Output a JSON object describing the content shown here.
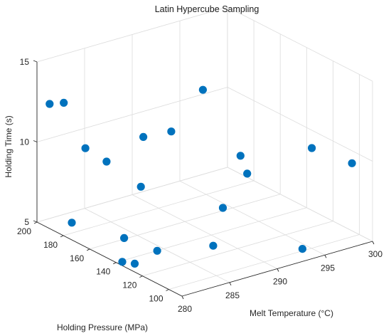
{
  "chart_data": {
    "type": "scatter",
    "projection": "3d",
    "title": "Latin Hypercube Sampling",
    "xlabel": "Melt Temperature (°C)",
    "ylabel": "Holding Pressure (MPa)",
    "zlabel": "Holding Time (s)",
    "xlim": [
      280,
      300
    ],
    "ylim": [
      90,
      200
    ],
    "zlim": [
      5,
      15
    ],
    "xticks": [
      280,
      285,
      290,
      295,
      300
    ],
    "yticks": [
      100,
      120,
      140,
      160,
      180,
      200
    ],
    "zticks": [
      5,
      10,
      15
    ],
    "grid": true,
    "marker_color": "#0072BD",
    "points": [
      {
        "x": 280.8,
        "y": 196.2,
        "z": 12.4
      },
      {
        "x": 281.9,
        "y": 193.4,
        "z": 12.4
      },
      {
        "x": 281.8,
        "y": 176.3,
        "z": 10.3
      },
      {
        "x": 282.1,
        "y": 162.4,
        "z": 10.0
      },
      {
        "x": 285.7,
        "y": 160.5,
        "z": 11.0
      },
      {
        "x": 286.4,
        "y": 144.4,
        "z": 11.9
      },
      {
        "x": 294.0,
        "y": 175.3,
        "z": 11.9
      },
      {
        "x": 292.7,
        "y": 137.4,
        "z": 9.6
      },
      {
        "x": 290.8,
        "y": 118.6,
        "z": 9.6
      },
      {
        "x": 298.5,
        "y": 125.2,
        "z": 9.6
      },
      {
        "x": 299.2,
        "y": 99.8,
        "z": 9.6
      },
      {
        "x": 283.2,
        "y": 144.3,
        "z": 9.0
      },
      {
        "x": 289.3,
        "y": 126.2,
        "z": 7.4
      },
      {
        "x": 281.0,
        "y": 180.8,
        "z": 5.6
      },
      {
        "x": 282.7,
        "y": 153.4,
        "z": 5.5
      },
      {
        "x": 288.3,
        "y": 126.3,
        "z": 5.2
      },
      {
        "x": 284.3,
        "y": 139.9,
        "z": 5.0
      },
      {
        "x": 294.3,
        "y": 102.0,
        "z": 5.0
      },
      {
        "x": 280.5,
        "y": 138.9,
        "z": 5.0
      },
      {
        "x": 281.1,
        "y": 133.8,
        "z": 5.0
      }
    ]
  }
}
